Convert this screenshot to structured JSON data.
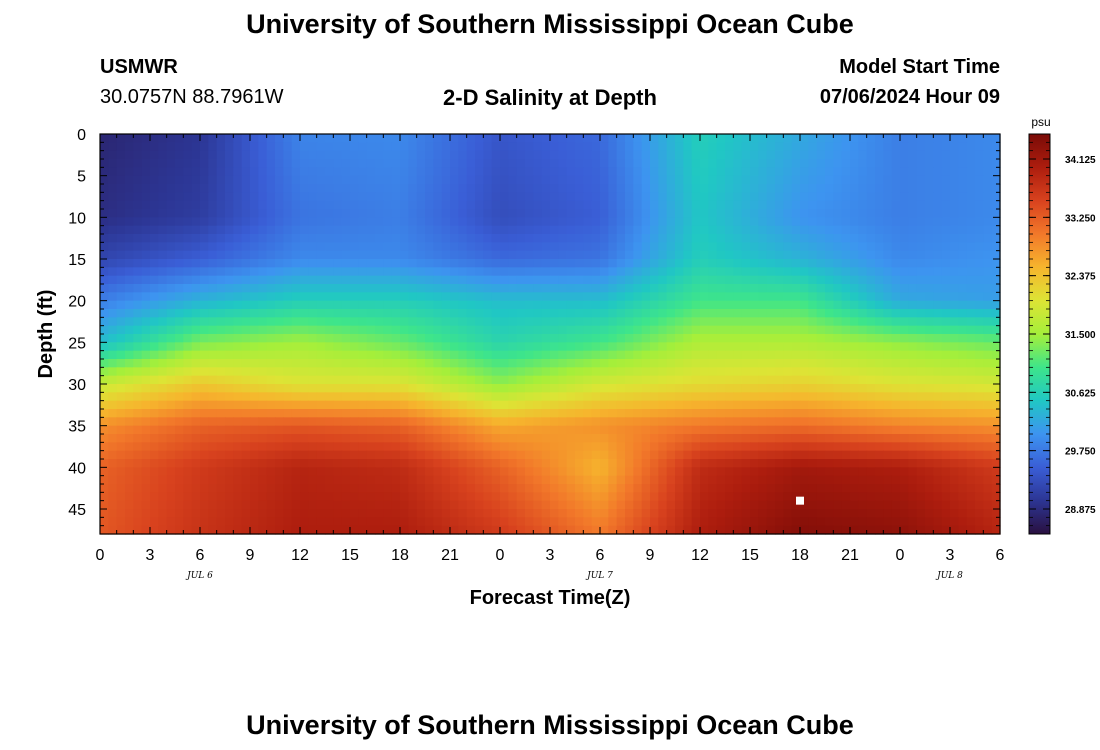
{
  "header": {
    "title": "University of Southern Mississippi Ocean Cube",
    "station": "USMWR",
    "coords": "30.0757N  88.7961W",
    "subtitle": "2-D Salinity at Depth",
    "model_start_label": "Model Start Time",
    "model_start_value": "07/06/2024 Hour 09"
  },
  "footer": {
    "title": "University of Southern Mississippi Ocean Cube"
  },
  "chart_data": {
    "type": "heatmap",
    "title": "2-D Salinity at Depth",
    "xlabel": "Forecast Time(Z)",
    "ylabel": "Depth (ft)",
    "x_ticks": [
      "0",
      "3",
      "6",
      "9",
      "12",
      "15",
      "18",
      "21",
      "0",
      "3",
      "6",
      "9",
      "12",
      "15",
      "18",
      "21",
      "0",
      "3",
      "6"
    ],
    "x_range_hours": [
      0,
      54
    ],
    "date_labels": [
      {
        "label": "JUL 6",
        "hour": 6
      },
      {
        "label": "JUL 7",
        "hour": 30
      },
      {
        "label": "JUL 8",
        "hour": 51
      }
    ],
    "y_ticks": [
      "0",
      "5",
      "10",
      "15",
      "20",
      "25",
      "30",
      "35",
      "40",
      "45"
    ],
    "y_range": [
      0,
      48
    ],
    "y_inverted": true,
    "colorbar": {
      "unit": "psu",
      "min": 28.5,
      "max": 34.5,
      "ticks": [
        "34.125",
        "33.250",
        "32.375",
        "31.500",
        "30.625",
        "29.750",
        "28.875"
      ],
      "tick_values": [
        34.125,
        33.25,
        32.375,
        31.5,
        30.625,
        29.75,
        28.875
      ],
      "colors": [
        "#2a1040",
        "#2c3593",
        "#3a5ed6",
        "#3d94f0",
        "#20c7c4",
        "#3ee58a",
        "#a5ef3a",
        "#dde435",
        "#f6b52d",
        "#f2782a",
        "#d8421e",
        "#ad1d0e",
        "#7a0b07"
      ]
    },
    "marker": {
      "hour": 42,
      "depth": 44
    },
    "surface_depths": [
      0,
      10,
      15,
      20,
      25,
      30,
      35,
      40,
      48
    ],
    "surface_times": [
      0,
      6,
      12,
      18,
      24,
      30,
      36,
      42,
      48,
      54
    ],
    "salinity": [
      [
        28.8,
        29.0,
        29.85,
        29.9,
        29.4,
        29.6,
        30.6,
        30.2,
        29.8,
        29.9
      ],
      [
        28.9,
        29.1,
        29.7,
        29.8,
        29.3,
        29.5,
        30.5,
        30.0,
        29.8,
        29.9
      ],
      [
        29.2,
        29.5,
        29.9,
        29.9,
        29.6,
        29.7,
        30.6,
        30.3,
        29.9,
        30.0
      ],
      [
        29.8,
        30.3,
        30.6,
        30.6,
        30.4,
        30.4,
        31.0,
        31.0,
        30.2,
        30.1
      ],
      [
        30.4,
        31.3,
        31.5,
        31.2,
        30.7,
        31.0,
        31.6,
        31.6,
        31.4,
        31.2
      ],
      [
        31.8,
        32.3,
        32.0,
        32.0,
        31.4,
        31.9,
        32.1,
        32.2,
        32.0,
        31.9
      ],
      [
        32.8,
        33.2,
        33.3,
        33.2,
        32.6,
        32.8,
        33.0,
        33.1,
        32.9,
        32.8
      ],
      [
        33.2,
        33.6,
        33.9,
        33.8,
        33.2,
        32.5,
        33.8,
        34.1,
        34.0,
        33.6
      ],
      [
        33.3,
        33.7,
        34.0,
        34.0,
        33.6,
        33.0,
        34.0,
        34.4,
        34.3,
        33.9
      ]
    ]
  }
}
